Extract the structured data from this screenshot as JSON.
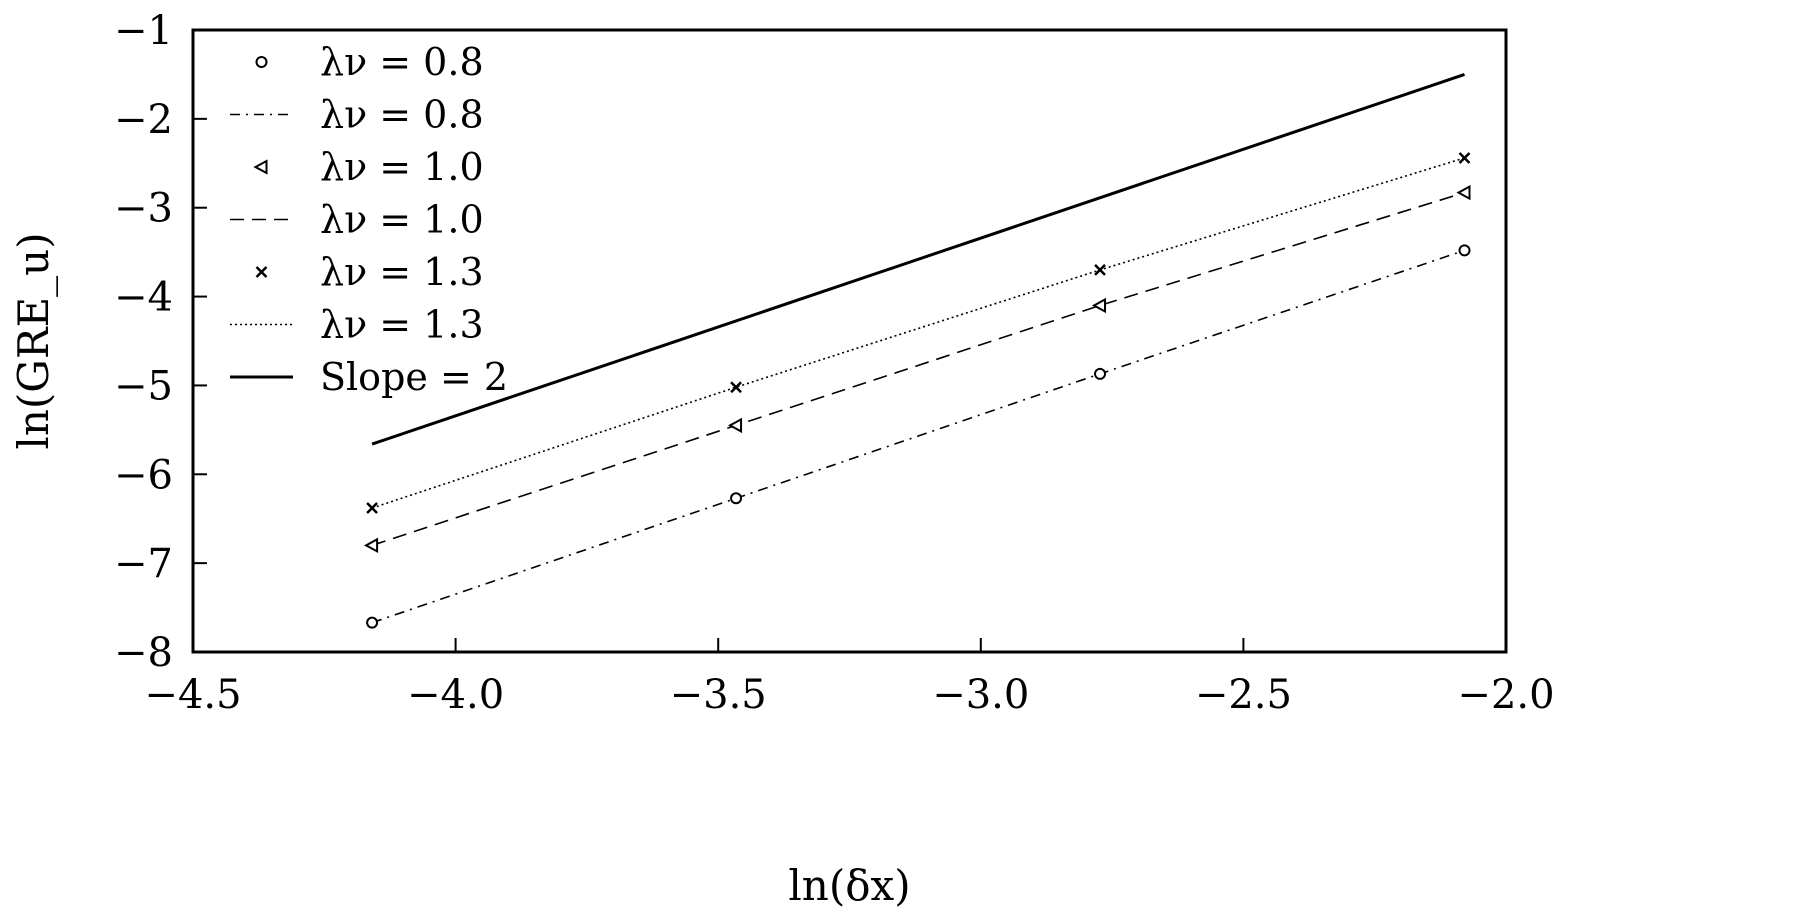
{
  "chart_data": {
    "type": "line",
    "title": "",
    "xlabel": "ln(δx)",
    "ylabel": "ln(GRE_u)",
    "xlim": [
      -4.5,
      -2.0
    ],
    "ylim": [
      -8,
      -1
    ],
    "xticks": [
      "−4.5",
      "−4.0",
      "−3.5",
      "−3.0",
      "−2.5",
      "−2.0"
    ],
    "yticks": [
      "−1",
      "−2",
      "−3",
      "−4",
      "−5",
      "−6",
      "−7",
      "−8"
    ],
    "grid": false,
    "legend_position": "top-left",
    "series": [
      {
        "name": "λν = 0.8",
        "style": "circle-markers",
        "x": [
          -4.159,
          -3.466,
          -2.773,
          -2.079
        ],
        "y": [
          -7.67,
          -6.27,
          -4.87,
          -3.48
        ]
      },
      {
        "name": "λν = 0.8",
        "style": "dash-dot-line",
        "x": [
          -4.159,
          -3.466,
          -2.773,
          -2.079
        ],
        "y": [
          -7.67,
          -6.27,
          -4.87,
          -3.48
        ]
      },
      {
        "name": "λν = 1.0",
        "style": "triangle-left-markers",
        "x": [
          -4.159,
          -3.466,
          -2.773,
          -2.079
        ],
        "y": [
          -6.8,
          -5.45,
          -4.1,
          -2.83
        ]
      },
      {
        "name": "λν = 1.0",
        "style": "dashed-line",
        "x": [
          -4.159,
          -3.466,
          -2.773,
          -2.079
        ],
        "y": [
          -6.8,
          -5.45,
          -4.1,
          -2.83
        ]
      },
      {
        "name": "λν = 1.3",
        "style": "x-markers",
        "x": [
          -4.159,
          -3.466,
          -2.773,
          -2.079
        ],
        "y": [
          -6.38,
          -5.02,
          -3.7,
          -2.44
        ]
      },
      {
        "name": "λν = 1.3",
        "style": "dotted-line",
        "x": [
          -4.159,
          -3.466,
          -2.773,
          -2.079
        ],
        "y": [
          -6.38,
          -5.02,
          -3.7,
          -2.44
        ]
      },
      {
        "name": "Slope = 2",
        "style": "solid-line",
        "x": [
          -4.159,
          -2.079
        ],
        "y": [
          -5.66,
          -1.5
        ]
      }
    ]
  }
}
